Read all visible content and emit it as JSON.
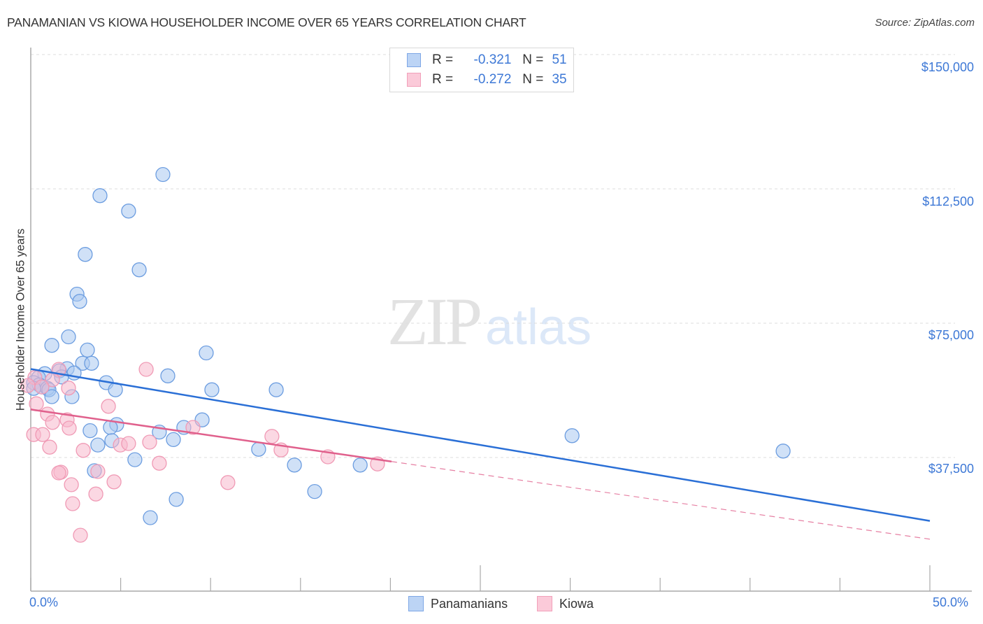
{
  "header": {
    "title": "PANAMANIAN VS KIOWA HOUSEHOLDER INCOME OVER 65 YEARS CORRELATION CHART",
    "source": "Source: ZipAtlas.com"
  },
  "legend": {
    "rows": [
      {
        "r_label": "R =",
        "r_value": "-0.321",
        "n_label": "N =",
        "n_value": "51",
        "color": "#a9c8f0"
      },
      {
        "r_label": "R =",
        "r_value": "-0.272",
        "n_label": "N =",
        "n_value": "35",
        "color": "#f7b8cc"
      }
    ]
  },
  "bottom_legend": [
    {
      "label": "Panamanians",
      "color": "#a9c8f0"
    },
    {
      "label": "Kiowa",
      "color": "#f7b8cc"
    }
  ],
  "watermark": {
    "zip": "ZIP",
    "atlas": "atlas"
  },
  "axes": {
    "ylabel": "Householder Income Over 65 years",
    "yticks": [
      "$150,000",
      "$112,500",
      "$75,000",
      "$37,500"
    ],
    "xticks": [
      "0.0%",
      "50.0%"
    ]
  },
  "colors": {
    "blue_line": "#2a6fd6",
    "pink_line": "#e0608c",
    "blue_fill": "#a9c8f0",
    "pink_fill": "#f7b8cc",
    "tick_label": "#3d78d6"
  },
  "chart_data": {
    "type": "scatter",
    "title": "PANAMANIAN VS KIOWA HOUSEHOLDER INCOME OVER 65 YEARS CORRELATION CHART",
    "xlabel": "",
    "ylabel": "Householder Income Over 65 years",
    "xlim": [
      0,
      50
    ],
    "ylim": [
      7000,
      153000
    ],
    "x_unit": "%",
    "yticks": [
      37500,
      75000,
      112500,
      150000
    ],
    "xticks_labeled": [
      0,
      50
    ],
    "grid": "horizontal dashed",
    "legend_position": "top-center",
    "series": [
      {
        "name": "Panamanians",
        "R": -0.321,
        "N": 51,
        "trend": {
          "x": [
            0,
            50
          ],
          "y": [
            62200,
            19800
          ]
        },
        "points": [
          [
            7.35,
            116500
          ],
          [
            3.85,
            110600
          ],
          [
            5.44,
            106300
          ],
          [
            3.03,
            94200
          ],
          [
            6.03,
            89900
          ],
          [
            2.57,
            83100
          ],
          [
            2.72,
            81100
          ],
          [
            2.1,
            71200
          ],
          [
            1.17,
            68800
          ],
          [
            3.15,
            67500
          ],
          [
            9.76,
            66700
          ],
          [
            2.88,
            63800
          ],
          [
            3.38,
            63800
          ],
          [
            2.02,
            62300
          ],
          [
            1.59,
            61700
          ],
          [
            2.41,
            61100
          ],
          [
            0.78,
            60900
          ],
          [
            0.43,
            59800
          ],
          [
            7.62,
            60300
          ],
          [
            1.71,
            60000
          ],
          [
            4.2,
            58400
          ],
          [
            0.16,
            58400
          ],
          [
            0.47,
            57800
          ],
          [
            0.62,
            57200
          ],
          [
            0.93,
            56800
          ],
          [
            4.71,
            56400
          ],
          [
            10.07,
            56400
          ],
          [
            13.65,
            56400
          ],
          [
            0.16,
            56800
          ],
          [
            1.01,
            56400
          ],
          [
            2.29,
            54500
          ],
          [
            1.17,
            54500
          ],
          [
            9.53,
            48000
          ],
          [
            4.78,
            46700
          ],
          [
            4.43,
            45900
          ],
          [
            7.15,
            44600
          ],
          [
            8.51,
            45900
          ],
          [
            3.3,
            45000
          ],
          [
            30.1,
            43600
          ],
          [
            7.93,
            42500
          ],
          [
            3.73,
            41000
          ],
          [
            4.51,
            42200
          ],
          [
            12.67,
            39800
          ],
          [
            41.84,
            39300
          ],
          [
            5.79,
            36900
          ],
          [
            14.66,
            35400
          ],
          [
            18.32,
            35400
          ],
          [
            3.54,
            33800
          ],
          [
            15.79,
            28000
          ],
          [
            8.09,
            25800
          ],
          [
            6.65,
            20700
          ]
        ]
      },
      {
        "name": "Kiowa",
        "R": -0.272,
        "N": 35,
        "trend": {
          "x": [
            0,
            50
          ],
          "y": [
            50900,
            14700
          ],
          "solid_until_x": 20.06
        },
        "points": [
          [
            6.42,
            62100
          ],
          [
            1.56,
            62100
          ],
          [
            1.21,
            59200
          ],
          [
            0.23,
            59800
          ],
          [
            -0.16,
            57600
          ],
          [
            2.1,
            56900
          ],
          [
            0.31,
            52500
          ],
          [
            4.32,
            51800
          ],
          [
            0.93,
            49600
          ],
          [
            1.21,
            47300
          ],
          [
            2.02,
            48000
          ],
          [
            0.16,
            43900
          ],
          [
            2.14,
            45700
          ],
          [
            13.41,
            43400
          ],
          [
            0.66,
            43900
          ],
          [
            9.02,
            45900
          ],
          [
            13.92,
            39600
          ],
          [
            6.61,
            41800
          ],
          [
            4.98,
            41000
          ],
          [
            2.92,
            39500
          ],
          [
            16.52,
            37700
          ],
          [
            19.28,
            35700
          ],
          [
            5.44,
            41400
          ],
          [
            1.05,
            40400
          ],
          [
            7.15,
            35900
          ],
          [
            3.73,
            33600
          ],
          [
            1.67,
            33400
          ],
          [
            1.56,
            33200
          ],
          [
            4.63,
            30700
          ],
          [
            2.26,
            29900
          ],
          [
            10.96,
            30500
          ],
          [
            3.62,
            27300
          ],
          [
            2.33,
            24600
          ],
          [
            2.76,
            15800
          ],
          [
            0.62,
            57200
          ]
        ]
      }
    ]
  }
}
